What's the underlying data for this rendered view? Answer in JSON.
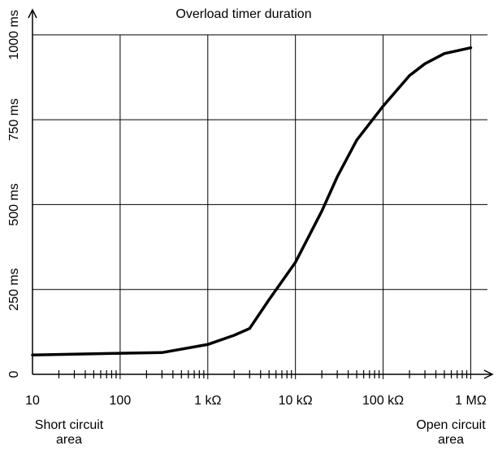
{
  "chart_data": {
    "type": "line",
    "title": "Overload timer duration",
    "x": [
      10,
      100,
      300,
      1000,
      2000,
      3000,
      5000,
      10000,
      20000,
      30000,
      50000,
      100000,
      200000,
      300000,
      500000,
      1000000
    ],
    "series": [
      {
        "name": "Overload timer duration",
        "color": "#000000",
        "values": [
          57,
          62,
          64,
          88,
          115,
          135,
          220,
          330,
          481,
          582,
          690,
          790,
          880,
          915,
          945,
          962
        ]
      }
    ],
    "xscale": "log",
    "xlim": [
      10,
      1550000
    ],
    "xticks": [
      10,
      100,
      {
        "value": 1000,
        "label": "1 kΩ"
      },
      {
        "value": 10000,
        "label": "10 kΩ"
      },
      {
        "value": 100000,
        "label": "100 kΩ"
      },
      {
        "value": 1000000,
        "label": "1 MΩ"
      }
    ],
    "xminorticks": [
      20,
      30,
      40,
      50,
      60,
      70,
      80,
      90,
      200,
      300,
      400,
      500,
      600,
      700,
      800,
      900,
      2000,
      3000,
      4000,
      5000,
      6000,
      7000,
      8000,
      9000,
      20000,
      30000,
      40000,
      50000,
      60000,
      70000,
      80000,
      90000,
      200000,
      300000,
      400000,
      500000,
      600000,
      700000,
      800000,
      900000
    ],
    "ylim": [
      0,
      1050
    ],
    "yticks": [
      0,
      {
        "value": 250,
        "label": "250 ms"
      },
      {
        "value": 500,
        "label": "500 ms"
      },
      {
        "value": 750,
        "label": "750 ms"
      },
      {
        "value": 1000,
        "label": "1000 ms"
      }
    ],
    "grid": true,
    "annotations": [
      {
        "lines": [
          "Short circuit",
          "area"
        ]
      },
      {
        "lines": [
          "Open circuit",
          "area"
        ]
      }
    ]
  }
}
